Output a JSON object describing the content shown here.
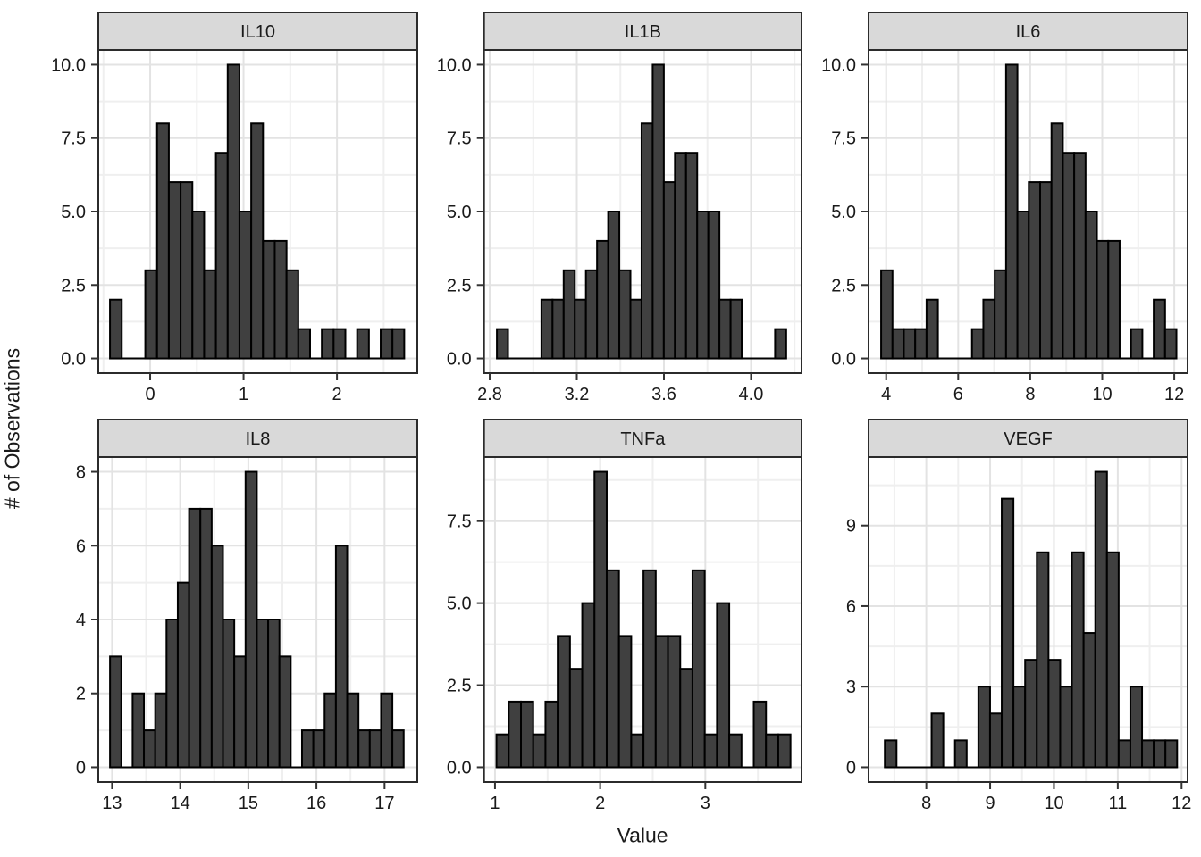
{
  "figure": {
    "y_axis_title": "# of Observations",
    "x_axis_title": "Value"
  },
  "colors": {
    "bar_fill": "#404040",
    "bar_stroke": "#000000",
    "strip_fill": "#d9d9d9",
    "strip_border": "#2b2b2b",
    "panel_border": "#2b2b2b",
    "grid_major": "#e3e3e3",
    "grid_minor": "#efefef",
    "tick_color": "#333333",
    "text_color": "#1a1a1a"
  },
  "chart_data": [
    {
      "type": "bar",
      "title": "IL10",
      "row": 0,
      "col": 0,
      "xlim": [
        -0.555,
        2.86
      ],
      "ylim": [
        -0.5,
        10.5
      ],
      "x_ticks": [
        0,
        1,
        2
      ],
      "x_tick_labels": [
        "0",
        "1",
        "2"
      ],
      "x_minor": [
        -0.5,
        0.5,
        1.5,
        2.5
      ],
      "y_ticks": [
        0,
        2.5,
        5,
        7.5,
        10
      ],
      "y_tick_labels": [
        "0.0",
        "2.5",
        "5.0",
        "7.5",
        "10.0"
      ],
      "y_minor": [
        1.25,
        3.75,
        6.25,
        8.75
      ],
      "bin_start": -0.43,
      "bin_width": 0.126,
      "counts": [
        2,
        0,
        0,
        3,
        8,
        6,
        6,
        5,
        3,
        7,
        10,
        5,
        8,
        4,
        4,
        3,
        1,
        0,
        1,
        1,
        0,
        1,
        0,
        1,
        1
      ]
    },
    {
      "type": "bar",
      "title": "IL1B",
      "row": 0,
      "col": 1,
      "xlim": [
        2.774,
        4.232
      ],
      "ylim": [
        -0.5,
        10.5
      ],
      "x_ticks": [
        2.8,
        3.2,
        3.6,
        4.0
      ],
      "x_tick_labels": [
        "2.8",
        "3.2",
        "3.6",
        "4.0"
      ],
      "x_minor": [
        3.0,
        3.4,
        3.8,
        4.2
      ],
      "y_ticks": [
        0,
        2.5,
        5,
        7.5,
        10
      ],
      "y_tick_labels": [
        "0.0",
        "2.5",
        "5.0",
        "7.5",
        "10.0"
      ],
      "y_minor": [
        1.25,
        3.75,
        6.25,
        8.75
      ],
      "bin_start": 2.833,
      "bin_width": 0.0511,
      "counts": [
        1,
        0,
        0,
        0,
        2,
        2,
        3,
        2,
        3,
        4,
        5,
        3,
        2,
        8,
        10,
        6,
        7,
        7,
        5,
        5,
        2,
        2,
        0,
        0,
        0,
        1
      ]
    },
    {
      "type": "bar",
      "title": "IL6",
      "row": 0,
      "col": 2,
      "xlim": [
        3.511,
        12.37
      ],
      "ylim": [
        -0.5,
        10.5
      ],
      "x_ticks": [
        4,
        6,
        8,
        10,
        12
      ],
      "x_tick_labels": [
        "4",
        "6",
        "8",
        "10",
        "12"
      ],
      "x_minor": [
        5,
        7,
        9,
        11
      ],
      "y_ticks": [
        0,
        2.5,
        5,
        7.5,
        10
      ],
      "y_tick_labels": [
        "0.0",
        "2.5",
        "5.0",
        "7.5",
        "10.0"
      ],
      "y_minor": [
        1.25,
        3.75,
        6.25,
        8.75
      ],
      "bin_start": 3.86,
      "bin_width": 0.3154,
      "counts": [
        3,
        1,
        1,
        1,
        2,
        0,
        0,
        0,
        1,
        2,
        3,
        10,
        5,
        6,
        6,
        8,
        7,
        7,
        5,
        4,
        4,
        0,
        1,
        0,
        2,
        1
      ]
    },
    {
      "type": "bar",
      "title": "IL8",
      "row": 1,
      "col": 0,
      "xlim": [
        12.798,
        17.481
      ],
      "ylim": [
        -0.4,
        8.4
      ],
      "x_ticks": [
        13,
        14,
        15,
        16,
        17
      ],
      "x_tick_labels": [
        "13",
        "14",
        "15",
        "16",
        "17"
      ],
      "x_minor": [
        13.5,
        14.5,
        15.5,
        16.5
      ],
      "y_ticks": [
        0,
        2,
        4,
        6,
        8
      ],
      "y_tick_labels": [
        "0",
        "2",
        "4",
        "6",
        "8"
      ],
      "y_minor": [
        1,
        3,
        5,
        7
      ],
      "bin_start": 12.97,
      "bin_width": 0.1658,
      "counts": [
        3,
        0,
        2,
        1,
        2,
        4,
        5,
        7,
        7,
        6,
        4,
        3,
        8,
        4,
        4,
        3,
        0,
        1,
        1,
        2,
        6,
        2,
        1,
        1,
        2,
        1
      ]
    },
    {
      "type": "bar",
      "title": "TNFa",
      "row": 1,
      "col": 1,
      "xlim": [
        0.896,
        3.915
      ],
      "ylim": [
        -0.45,
        9.45
      ],
      "x_ticks": [
        1,
        2,
        3
      ],
      "x_tick_labels": [
        "1",
        "2",
        "3"
      ],
      "x_minor": [
        1.5,
        2.5,
        3.5
      ],
      "y_ticks": [
        0,
        2.5,
        5,
        7.5
      ],
      "y_tick_labels": [
        "0.0",
        "2.5",
        "5.0",
        "7.5"
      ],
      "y_minor": [
        1.25,
        3.75,
        6.25,
        8.75
      ],
      "bin_start": 1.014,
      "bin_width": 0.1165,
      "counts": [
        1,
        2,
        2,
        1,
        2,
        4,
        3,
        5,
        9,
        6,
        4,
        1,
        6,
        4,
        4,
        3,
        6,
        1,
        5,
        1,
        0,
        2,
        1,
        1
      ]
    },
    {
      "type": "bar",
      "title": "VEGF",
      "row": 1,
      "col": 2,
      "xlim": [
        7.095,
        12.094
      ],
      "ylim": [
        -0.55,
        11.55
      ],
      "x_ticks": [
        8,
        9,
        10,
        11,
        12
      ],
      "x_tick_labels": [
        "8",
        "9",
        "10",
        "11",
        "12"
      ],
      "x_minor": [
        7.5,
        8.5,
        9.5,
        10.5,
        11.5
      ],
      "y_ticks": [
        0,
        3,
        6,
        9
      ],
      "y_tick_labels": [
        "0",
        "3",
        "6",
        "9"
      ],
      "y_minor": [
        1.5,
        4.5,
        7.5,
        10.5
      ],
      "bin_start": 7.35,
      "bin_width": 0.1832,
      "counts": [
        1,
        0,
        0,
        0,
        2,
        0,
        1,
        0,
        3,
        2,
        10,
        3,
        4,
        8,
        4,
        3,
        8,
        5,
        11,
        8,
        1,
        3,
        1,
        1,
        1
      ]
    }
  ]
}
